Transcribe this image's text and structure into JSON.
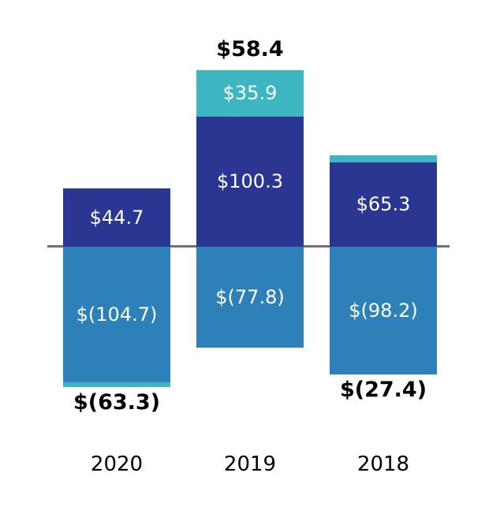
{
  "chart_data": {
    "type": "bar",
    "stacked": true,
    "title": "",
    "xlabel": "",
    "ylabel": "",
    "legend": false,
    "grid": false,
    "zero_line": true,
    "categories": [
      "2020",
      "2019",
      "2018"
    ],
    "colors": {
      "dark_blue": "#2A3692",
      "medium_blue": "#2E81B8",
      "teal": "#3EB6C1",
      "axis_line": "#6F7073",
      "value_label_light": "#FFFFFF",
      "label_dark": "#000000",
      "background": "#FFFFFF"
    },
    "bars": [
      {
        "category": "2020",
        "total": -63.3,
        "total_label": "$(63.3)",
        "total_label_position": "below",
        "segments": [
          {
            "value": 44.7,
            "label": "$44.7",
            "color": "dark_blue"
          },
          {
            "value": -104.7,
            "label": "$(104.7)",
            "color": "medium_blue"
          },
          {
            "value": -3.3,
            "label": "",
            "color": "teal"
          }
        ]
      },
      {
        "category": "2019",
        "total": 58.4,
        "total_label": "$58.4",
        "total_label_position": "above",
        "segments": [
          {
            "value": 35.9,
            "label": "$35.9",
            "color": "teal"
          },
          {
            "value": 100.3,
            "label": "$100.3",
            "color": "dark_blue"
          },
          {
            "value": -77.8,
            "label": "$(77.8)",
            "color": "medium_blue"
          }
        ]
      },
      {
        "category": "2018",
        "total": -27.4,
        "total_label": "$(27.4)",
        "total_label_position": "below",
        "segments": [
          {
            "value": 5.5,
            "label": "",
            "color": "teal"
          },
          {
            "value": 65.3,
            "label": "$65.3",
            "color": "dark_blue"
          },
          {
            "value": -98.2,
            "label": "$(98.2)",
            "color": "medium_blue"
          }
        ]
      }
    ]
  }
}
